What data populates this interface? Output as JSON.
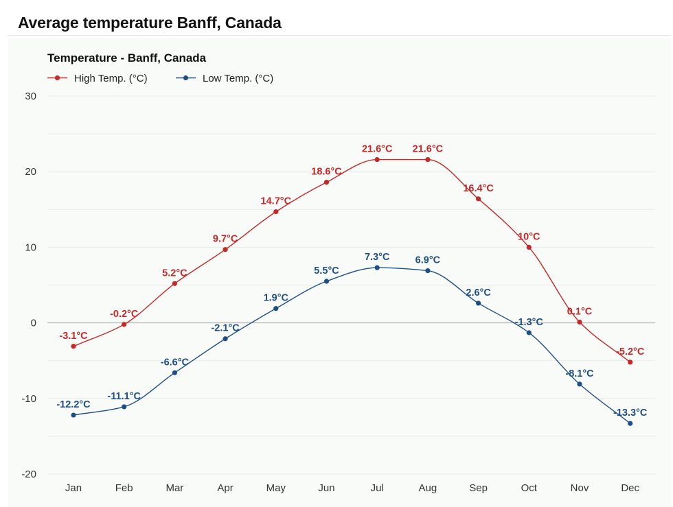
{
  "page": {
    "heading": "Average temperature Banff, Canada"
  },
  "colors": {
    "high": "#c62828",
    "low": "#1d4f86",
    "grid": "#e8ebe6",
    "zero_line": "#a5a5a5",
    "panel": "#f9fbf8"
  },
  "chart_data": {
    "type": "line",
    "title": "Temperature - Banff, Canada",
    "xlabel": "",
    "ylabel": "",
    "categories": [
      "Jan",
      "Feb",
      "Mar",
      "Apr",
      "May",
      "Jun",
      "Jul",
      "Aug",
      "Sep",
      "Oct",
      "Nov",
      "Dec"
    ],
    "ylim": [
      -20,
      30
    ],
    "yticks": [
      30,
      20,
      10,
      0,
      -10,
      -20
    ],
    "grid": true,
    "legend_position": "top-left",
    "series": [
      {
        "name": "High Temp. (°C)",
        "color_key": "high",
        "values": [
          -3.1,
          -0.2,
          5.2,
          9.7,
          14.7,
          18.6,
          21.6,
          21.6,
          16.4,
          10,
          0.1,
          -5.2
        ],
        "labels": [
          "-3.1°C",
          "-0.2°C",
          "5.2°C",
          "9.7°C",
          "14.7°C",
          "18.6°C",
          "21.6°C",
          "21.6°C",
          "16.4°C",
          "10°C",
          "0.1°C",
          "-5.2°C"
        ]
      },
      {
        "name": "Low Temp. (°C)",
        "color_key": "low",
        "values": [
          -12.2,
          -11.1,
          -6.6,
          -2.1,
          1.9,
          5.5,
          7.3,
          6.9,
          2.6,
          -1.3,
          -8.1,
          -13.3
        ],
        "labels": [
          "-12.2°C",
          "-11.1°C",
          "-6.6°C",
          "-2.1°C",
          "1.9°C",
          "5.5°C",
          "7.3°C",
          "6.9°C",
          "2.6°C",
          "-1.3°C",
          "-8.1°C",
          "-13.3°C"
        ]
      }
    ]
  }
}
